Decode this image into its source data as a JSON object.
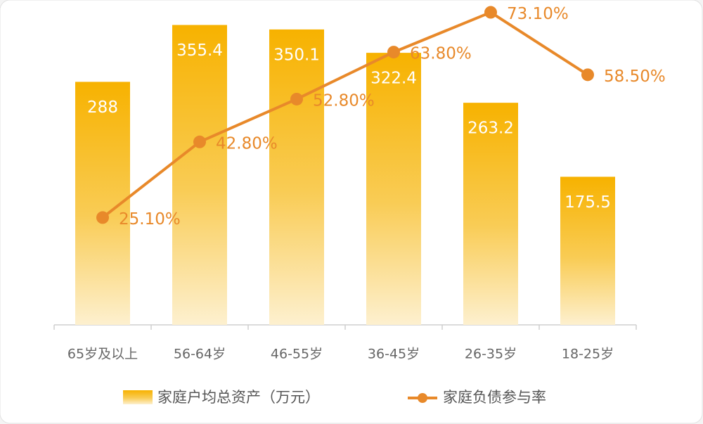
{
  "chart_data": {
    "type": "combo",
    "categories": [
      "65岁及以上",
      "56-64岁",
      "46-55岁",
      "36-45岁",
      "26-35岁",
      "18-25岁"
    ],
    "series": [
      {
        "name": "家庭户均总资产（万元）",
        "type": "bar",
        "color": "#f7b200",
        "values": [
          288,
          355.4,
          350.1,
          322.4,
          263.2,
          175.5
        ]
      },
      {
        "name": "家庭负债参与率",
        "type": "line",
        "axis": "y2",
        "color": "#e8892a",
        "values": [
          25.1,
          42.8,
          52.8,
          63.8,
          73.1,
          58.5
        ],
        "value_labels": [
          "25.10%",
          "42.80%",
          "52.80%",
          "63.80%",
          "73.10%",
          "58.50%"
        ]
      }
    ],
    "ylim": [
      0,
      380
    ],
    "y2lim": [
      0,
      75
    ]
  }
}
